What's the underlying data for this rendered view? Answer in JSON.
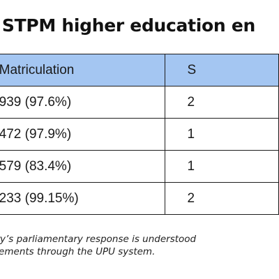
{
  "title": "n vs STPM higher education en",
  "table": {
    "headers": [
      "",
      "Matriculation",
      "S"
    ],
    "rows": [
      [
        "",
        "939 (97.6%)",
        "2"
      ],
      [
        "",
        "472 (97.9%)",
        "1"
      ],
      [
        "",
        "579 (83.4%)",
        "1"
      ],
      [
        "",
        "233 (99.15%)",
        "2"
      ]
    ]
  },
  "note": {
    "line1": "ation Ministry’s parliamentary response is understood",
    "line2": "ded via placements through the UPU system."
  },
  "colors": {
    "header_bg": "#a4c6f2",
    "border": "#1c1c1c"
  }
}
